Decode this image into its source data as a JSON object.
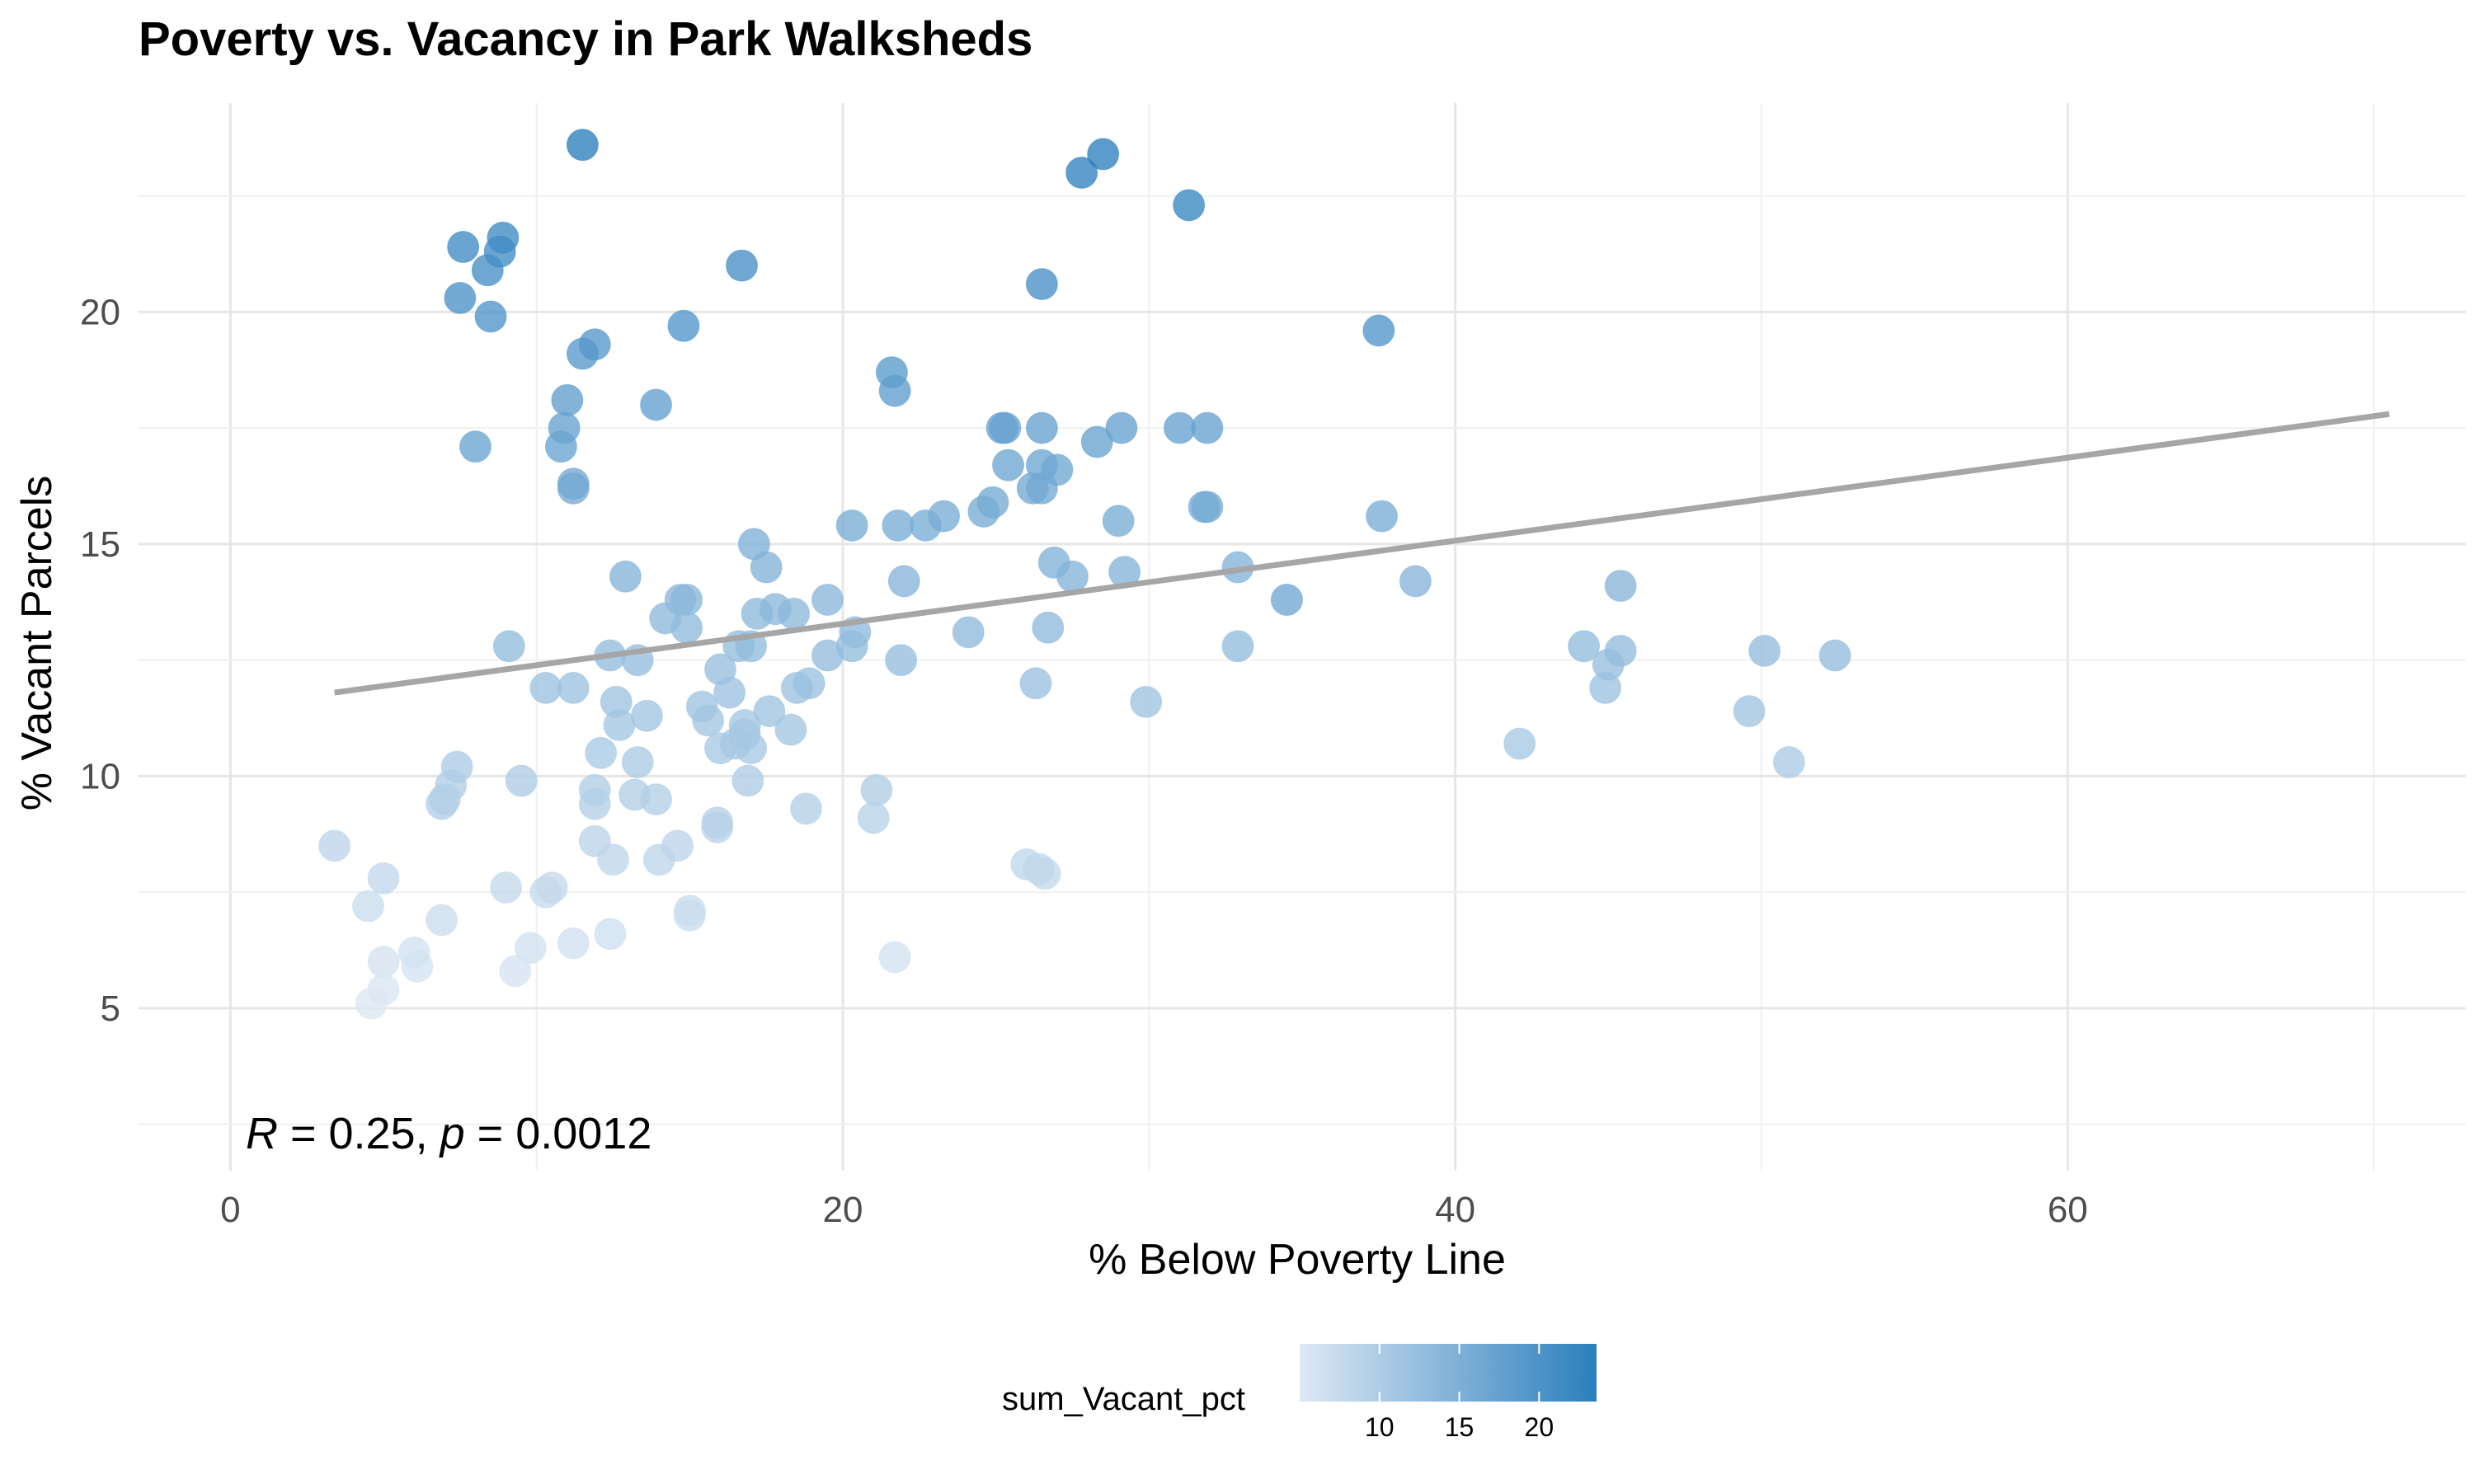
{
  "chart_data": {
    "type": "scatter",
    "title": "Poverty vs. Vacancy in Park Walksheds",
    "xlabel": "% Below Poverty Line",
    "ylabel": "% Vacant Parcels",
    "xlim": [
      -3,
      73
    ],
    "ylim": [
      1.5,
      24.5
    ],
    "x_ticks": [
      0,
      20,
      40,
      60
    ],
    "y_ticks": [
      5,
      10,
      15,
      20
    ],
    "grid": true,
    "legend": {
      "title": "sum_Vacant_pct",
      "placement": "bottom",
      "range": [
        5,
        23.6
      ],
      "ticks": [
        10,
        15,
        20
      ],
      "low_color": "#dde8f4",
      "high_color": "#2b7fbd"
    },
    "trend_line": {
      "x": [
        3.4,
        70.5
      ],
      "y": [
        11.8,
        17.8
      ],
      "color": "#a6a6a6"
    },
    "annotation": {
      "r": "0.25",
      "p": "0.0012",
      "x": 0.5,
      "y": 2.3
    },
    "points": [
      [
        11.5,
        23.6
      ],
      [
        27.8,
        23.0
      ],
      [
        28.5,
        23.4
      ],
      [
        31.3,
        22.3
      ],
      [
        7.6,
        21.4
      ],
      [
        8.9,
        21.6
      ],
      [
        8.8,
        21.3
      ],
      [
        8.4,
        20.9
      ],
      [
        7.5,
        20.3
      ],
      [
        8.5,
        19.9
      ],
      [
        16.7,
        21.0
      ],
      [
        26.5,
        20.6
      ],
      [
        11.5,
        19.1
      ],
      [
        11.9,
        19.3
      ],
      [
        14.8,
        19.7
      ],
      [
        37.5,
        19.6
      ],
      [
        21.6,
        18.7
      ],
      [
        21.7,
        18.3
      ],
      [
        11.0,
        18.1
      ],
      [
        10.9,
        17.5
      ],
      [
        10.8,
        17.1
      ],
      [
        8.0,
        17.1
      ],
      [
        11.2,
        16.3
      ],
      [
        11.2,
        16.2
      ],
      [
        13.9,
        18.0
      ],
      [
        25.2,
        17.5
      ],
      [
        25.3,
        17.5
      ],
      [
        26.5,
        17.5
      ],
      [
        29.1,
        17.5
      ],
      [
        31.0,
        17.5
      ],
      [
        31.9,
        17.5
      ],
      [
        28.3,
        17.2
      ],
      [
        25.4,
        16.7
      ],
      [
        26.5,
        16.7
      ],
      [
        27.0,
        16.6
      ],
      [
        24.9,
        15.9
      ],
      [
        26.2,
        16.2
      ],
      [
        26.5,
        16.2
      ],
      [
        31.8,
        15.8
      ],
      [
        31.9,
        15.8
      ],
      [
        24.6,
        15.7
      ],
      [
        23.3,
        15.6
      ],
      [
        22.7,
        15.4
      ],
      [
        21.8,
        15.4
      ],
      [
        20.3,
        15.4
      ],
      [
        29.0,
        15.5
      ],
      [
        37.6,
        15.6
      ],
      [
        17.1,
        15.0
      ],
      [
        17.5,
        14.5
      ],
      [
        26.9,
        14.6
      ],
      [
        27.5,
        14.3
      ],
      [
        29.2,
        14.4
      ],
      [
        32.9,
        14.5
      ],
      [
        38.7,
        14.2
      ],
      [
        22.0,
        14.2
      ],
      [
        12.9,
        14.3
      ],
      [
        14.7,
        13.8
      ],
      [
        14.9,
        13.8
      ],
      [
        14.2,
        13.4
      ],
      [
        14.9,
        13.2
      ],
      [
        17.2,
        13.5
      ],
      [
        17.8,
        13.6
      ],
      [
        18.4,
        13.5
      ],
      [
        19.5,
        13.8
      ],
      [
        20.4,
        13.1
      ],
      [
        24.1,
        13.1
      ],
      [
        26.7,
        13.2
      ],
      [
        34.5,
        13.8
      ],
      [
        34.5,
        13.8
      ],
      [
        9.1,
        12.8
      ],
      [
        12.4,
        12.6
      ],
      [
        13.3,
        12.5
      ],
      [
        16.6,
        12.8
      ],
      [
        17.0,
        12.8
      ],
      [
        19.5,
        12.6
      ],
      [
        20.3,
        12.8
      ],
      [
        21.9,
        12.5
      ],
      [
        32.9,
        12.8
      ],
      [
        10.3,
        11.9
      ],
      [
        11.2,
        11.9
      ],
      [
        12.6,
        11.6
      ],
      [
        12.7,
        11.1
      ],
      [
        13.6,
        11.3
      ],
      [
        15.4,
        11.5
      ],
      [
        15.6,
        11.2
      ],
      [
        16.0,
        12.3
      ],
      [
        16.3,
        11.8
      ],
      [
        16.8,
        11.1
      ],
      [
        17.6,
        11.4
      ],
      [
        18.3,
        11.0
      ],
      [
        18.5,
        11.9
      ],
      [
        18.9,
        12.0
      ],
      [
        26.3,
        12.0
      ],
      [
        29.9,
        11.6
      ],
      [
        42.1,
        10.7
      ],
      [
        44.2,
        12.8
      ],
      [
        45.0,
        12.4
      ],
      [
        45.4,
        12.7
      ],
      [
        45.4,
        14.1
      ],
      [
        44.9,
        11.9
      ],
      [
        50.1,
        12.7
      ],
      [
        52.4,
        12.6
      ],
      [
        49.6,
        11.4
      ],
      [
        50.9,
        10.3
      ],
      [
        12.1,
        10.5
      ],
      [
        13.3,
        10.3
      ],
      [
        16.0,
        10.6
      ],
      [
        16.5,
        10.7
      ],
      [
        16.8,
        10.9
      ],
      [
        17.0,
        10.6
      ],
      [
        16.9,
        9.9
      ],
      [
        7.4,
        10.2
      ],
      [
        7.2,
        9.8
      ],
      [
        7.0,
        9.5
      ],
      [
        6.9,
        9.4
      ],
      [
        9.5,
        9.9
      ],
      [
        11.9,
        9.7
      ],
      [
        11.9,
        9.4
      ],
      [
        13.2,
        9.6
      ],
      [
        13.9,
        9.5
      ],
      [
        15.9,
        8.9
      ],
      [
        15.9,
        9.0
      ],
      [
        18.8,
        9.3
      ],
      [
        21.1,
        9.7
      ],
      [
        21.0,
        9.1
      ],
      [
        11.9,
        8.6
      ],
      [
        12.5,
        8.2
      ],
      [
        14.0,
        8.2
      ],
      [
        14.6,
        8.5
      ],
      [
        26.0,
        8.1
      ],
      [
        26.4,
        8.0
      ],
      [
        26.6,
        7.9
      ],
      [
        3.4,
        8.5
      ],
      [
        5.0,
        7.8
      ],
      [
        4.5,
        7.2
      ],
      [
        6.9,
        6.9
      ],
      [
        9.0,
        7.6
      ],
      [
        10.3,
        7.5
      ],
      [
        10.5,
        7.6
      ],
      [
        15.0,
        7.1
      ],
      [
        15.0,
        7.0
      ],
      [
        12.4,
        6.6
      ],
      [
        9.8,
        6.3
      ],
      [
        11.2,
        6.4
      ],
      [
        21.7,
        6.1
      ],
      [
        5.0,
        6.0
      ],
      [
        6.0,
        6.2
      ],
      [
        6.1,
        5.9
      ],
      [
        9.3,
        5.8
      ],
      [
        5.0,
        5.4
      ],
      [
        4.6,
        5.1
      ]
    ]
  }
}
